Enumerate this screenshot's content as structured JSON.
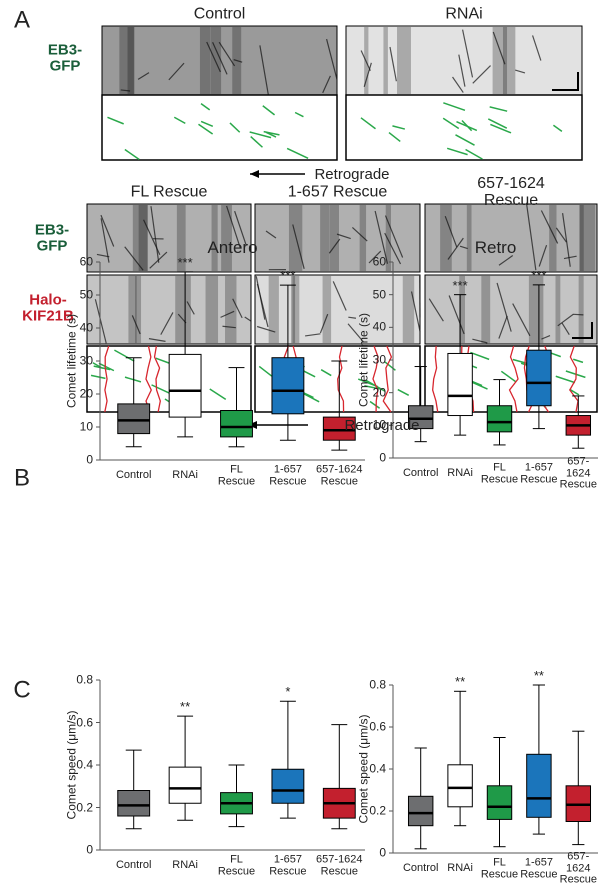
{
  "figure": {
    "panel_labels": [
      "A",
      "B",
      "C"
    ],
    "conditions_top": [
      "Control",
      "RNAi"
    ],
    "conditions_bottom": [
      "FL Rescue",
      "1-657 Rescue",
      "657-1624 Rescue"
    ],
    "channel_labels": [
      "EB3-\nGFP",
      "EB3-\nGFP",
      "Halo-\nKIF21B"
    ],
    "direction_labels": [
      "Retrograde",
      "Retrograde"
    ]
  },
  "chart_data": [
    {
      "type": "box",
      "title": "Antero",
      "y_label": "Comet lifetime (s)",
      "ylim": [
        0,
        60
      ],
      "yticks": [
        0,
        10,
        20,
        30,
        40,
        50,
        60
      ],
      "categories": [
        "Control",
        "RNAi",
        "FL\nRescue",
        "1-657\nRescue",
        "657-1624\nRescue"
      ],
      "colors": [
        "#6d6e70",
        "#ffffff",
        "#1f9a48",
        "#1b75bb",
        "#c3202e"
      ],
      "boxes": [
        {
          "whislo": 4,
          "q1": 8,
          "med": 12,
          "q3": 17,
          "whishi": 31
        },
        {
          "whislo": 7,
          "q1": 13,
          "med": 21,
          "q3": 32,
          "whishi": 57
        },
        {
          "whislo": 4,
          "q1": 7,
          "med": 10,
          "q3": 15,
          "whishi": 28
        },
        {
          "whislo": 6,
          "q1": 14,
          "med": 21,
          "q3": 31,
          "whishi": 53
        },
        {
          "whislo": 3,
          "q1": 6,
          "med": 9,
          "q3": 13,
          "whishi": 30
        }
      ],
      "annotations": [
        {
          "category": "RNAi",
          "text": "***"
        },
        {
          "category": "1-657\nRescue",
          "text": "***"
        }
      ]
    },
    {
      "type": "box",
      "title": "Retro",
      "y_label": "Comet lifetime (s)",
      "ylim": [
        0,
        60
      ],
      "yticks": [
        0,
        10,
        20,
        30,
        40,
        50,
        60
      ],
      "categories": [
        "Control",
        "RNAi",
        "FL\nRescue",
        "1-657\nRescue",
        "657-1624\nRescue"
      ],
      "colors": [
        "#6d6e70",
        "#ffffff",
        "#1f9a48",
        "#1b75bb",
        "#c3202e"
      ],
      "boxes": [
        {
          "whislo": 5,
          "q1": 9,
          "med": 12,
          "q3": 16,
          "whishi": 28
        },
        {
          "whislo": 7,
          "q1": 13,
          "med": 19,
          "q3": 32,
          "whishi": 50
        },
        {
          "whislo": 4,
          "q1": 8,
          "med": 11,
          "q3": 16,
          "whishi": 24
        },
        {
          "whislo": 9,
          "q1": 16,
          "med": 23,
          "q3": 33,
          "whishi": 53
        },
        {
          "whislo": 3,
          "q1": 7,
          "med": 10,
          "q3": 13,
          "whishi": 19
        }
      ],
      "annotations": [
        {
          "category": "RNAi",
          "text": "***"
        },
        {
          "category": "1-657\nRescue",
          "text": "***"
        }
      ]
    },
    {
      "type": "box",
      "y_label": "Comet speed (μm/s)",
      "ylim": [
        0,
        0.8
      ],
      "yticks": [
        0,
        0.2,
        0.4,
        0.6,
        0.8
      ],
      "categories": [
        "Control",
        "RNAi",
        "FL\nRescue",
        "1-657\nRescue",
        "657-1624\nRescue"
      ],
      "colors": [
        "#6d6e70",
        "#ffffff",
        "#1f9a48",
        "#1b75bb",
        "#c3202e"
      ],
      "boxes": [
        {
          "whislo": 0.1,
          "q1": 0.16,
          "med": 0.21,
          "q3": 0.28,
          "whishi": 0.47
        },
        {
          "whislo": 0.14,
          "q1": 0.22,
          "med": 0.29,
          "q3": 0.39,
          "whishi": 0.63
        },
        {
          "whislo": 0.11,
          "q1": 0.17,
          "med": 0.22,
          "q3": 0.27,
          "whishi": 0.4
        },
        {
          "whislo": 0.15,
          "q1": 0.22,
          "med": 0.28,
          "q3": 0.38,
          "whishi": 0.7
        },
        {
          "whislo": 0.1,
          "q1": 0.15,
          "med": 0.22,
          "q3": 0.29,
          "whishi": 0.59
        }
      ],
      "annotations": [
        {
          "category": "RNAi",
          "text": "**"
        },
        {
          "category": "1-657\nRescue",
          "text": "*"
        }
      ]
    },
    {
      "type": "box",
      "y_label": "Comet speed (μm/s)",
      "ylim": [
        0,
        0.8
      ],
      "yticks": [
        0,
        0.2,
        0.4,
        0.6,
        0.8
      ],
      "categories": [
        "Control",
        "RNAi",
        "FL\nRescue",
        "1-657\nRescue",
        "657-1624\nRescue"
      ],
      "colors": [
        "#6d6e70",
        "#ffffff",
        "#1f9a48",
        "#1b75bb",
        "#c3202e"
      ],
      "boxes": [
        {
          "whislo": 0.02,
          "q1": 0.13,
          "med": 0.19,
          "q3": 0.27,
          "whishi": 0.5
        },
        {
          "whislo": 0.13,
          "q1": 0.22,
          "med": 0.31,
          "q3": 0.42,
          "whishi": 0.77
        },
        {
          "whislo": 0.03,
          "q1": 0.16,
          "med": 0.22,
          "q3": 0.32,
          "whishi": 0.55
        },
        {
          "whislo": 0.09,
          "q1": 0.17,
          "med": 0.26,
          "q3": 0.47,
          "whishi": 0.8
        },
        {
          "whislo": 0.04,
          "q1": 0.15,
          "med": 0.23,
          "q3": 0.32,
          "whishi": 0.58
        }
      ],
      "annotations": [
        {
          "category": "RNAi",
          "text": "**"
        },
        {
          "category": "1-657\nRescue",
          "text": "**"
        }
      ]
    }
  ]
}
